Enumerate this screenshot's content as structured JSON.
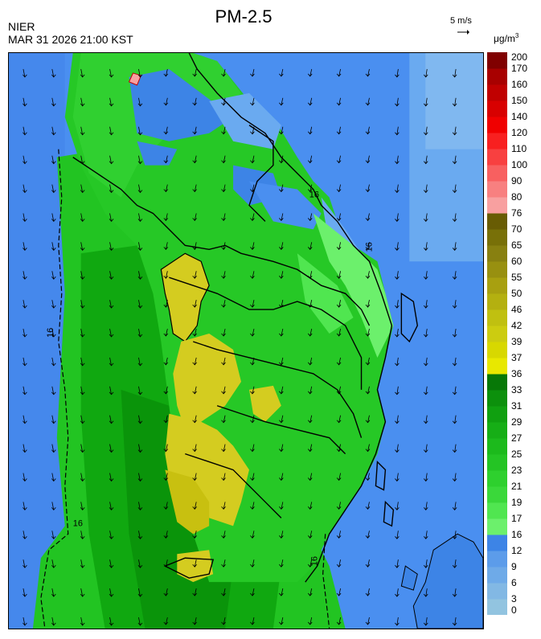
{
  "header": {
    "title": "PM-2.5",
    "agency": "NIER",
    "timestamp": "MAR 31 2026 21:00 KST",
    "wind_reference": "5 m/s",
    "unit_main": "μg/m",
    "unit_sup": "3"
  },
  "legend": {
    "labels": [
      "0",
      "3",
      "6",
      "9",
      "12",
      "16",
      "17",
      "19",
      "21",
      "23",
      "25",
      "27",
      "29",
      "31",
      "33",
      "36",
      "37",
      "39",
      "42",
      "46",
      "50",
      "55",
      "60",
      "65",
      "70",
      "76",
      "80",
      "90",
      "100",
      "110",
      "120",
      "140",
      "150",
      "160",
      "170",
      "200"
    ],
    "colors": [
      "#92c4e0",
      "#82b8e4",
      "#6eaae8",
      "#5c9cea",
      "#3d84e6",
      "#6cf06c",
      "#50e650",
      "#3ad83a",
      "#2ed02e",
      "#24c424",
      "#1cba1c",
      "#16ae16",
      "#10a010",
      "#0c900c",
      "#077807",
      "#e8e800",
      "#d8d800",
      "#cccc10",
      "#c0c010",
      "#b4b010",
      "#a8a010",
      "#989010",
      "#888010",
      "#787008",
      "#685c04",
      "#f8a0a0",
      "#f88080",
      "#f86060",
      "#f84040",
      "#f82020",
      "#f00000",
      "#d80000",
      "#c00000",
      "#a80000",
      "#800000"
    ],
    "levels": {
      "blue": "#4a8ff0",
      "green": "#30d030",
      "yellow": "#d4cc20"
    }
  },
  "map": {
    "contour_labels": [
      "16",
      "16",
      "16",
      "16",
      "16"
    ],
    "land_color": "#1fbf1f",
    "sea_color": "#4a8ff0"
  }
}
